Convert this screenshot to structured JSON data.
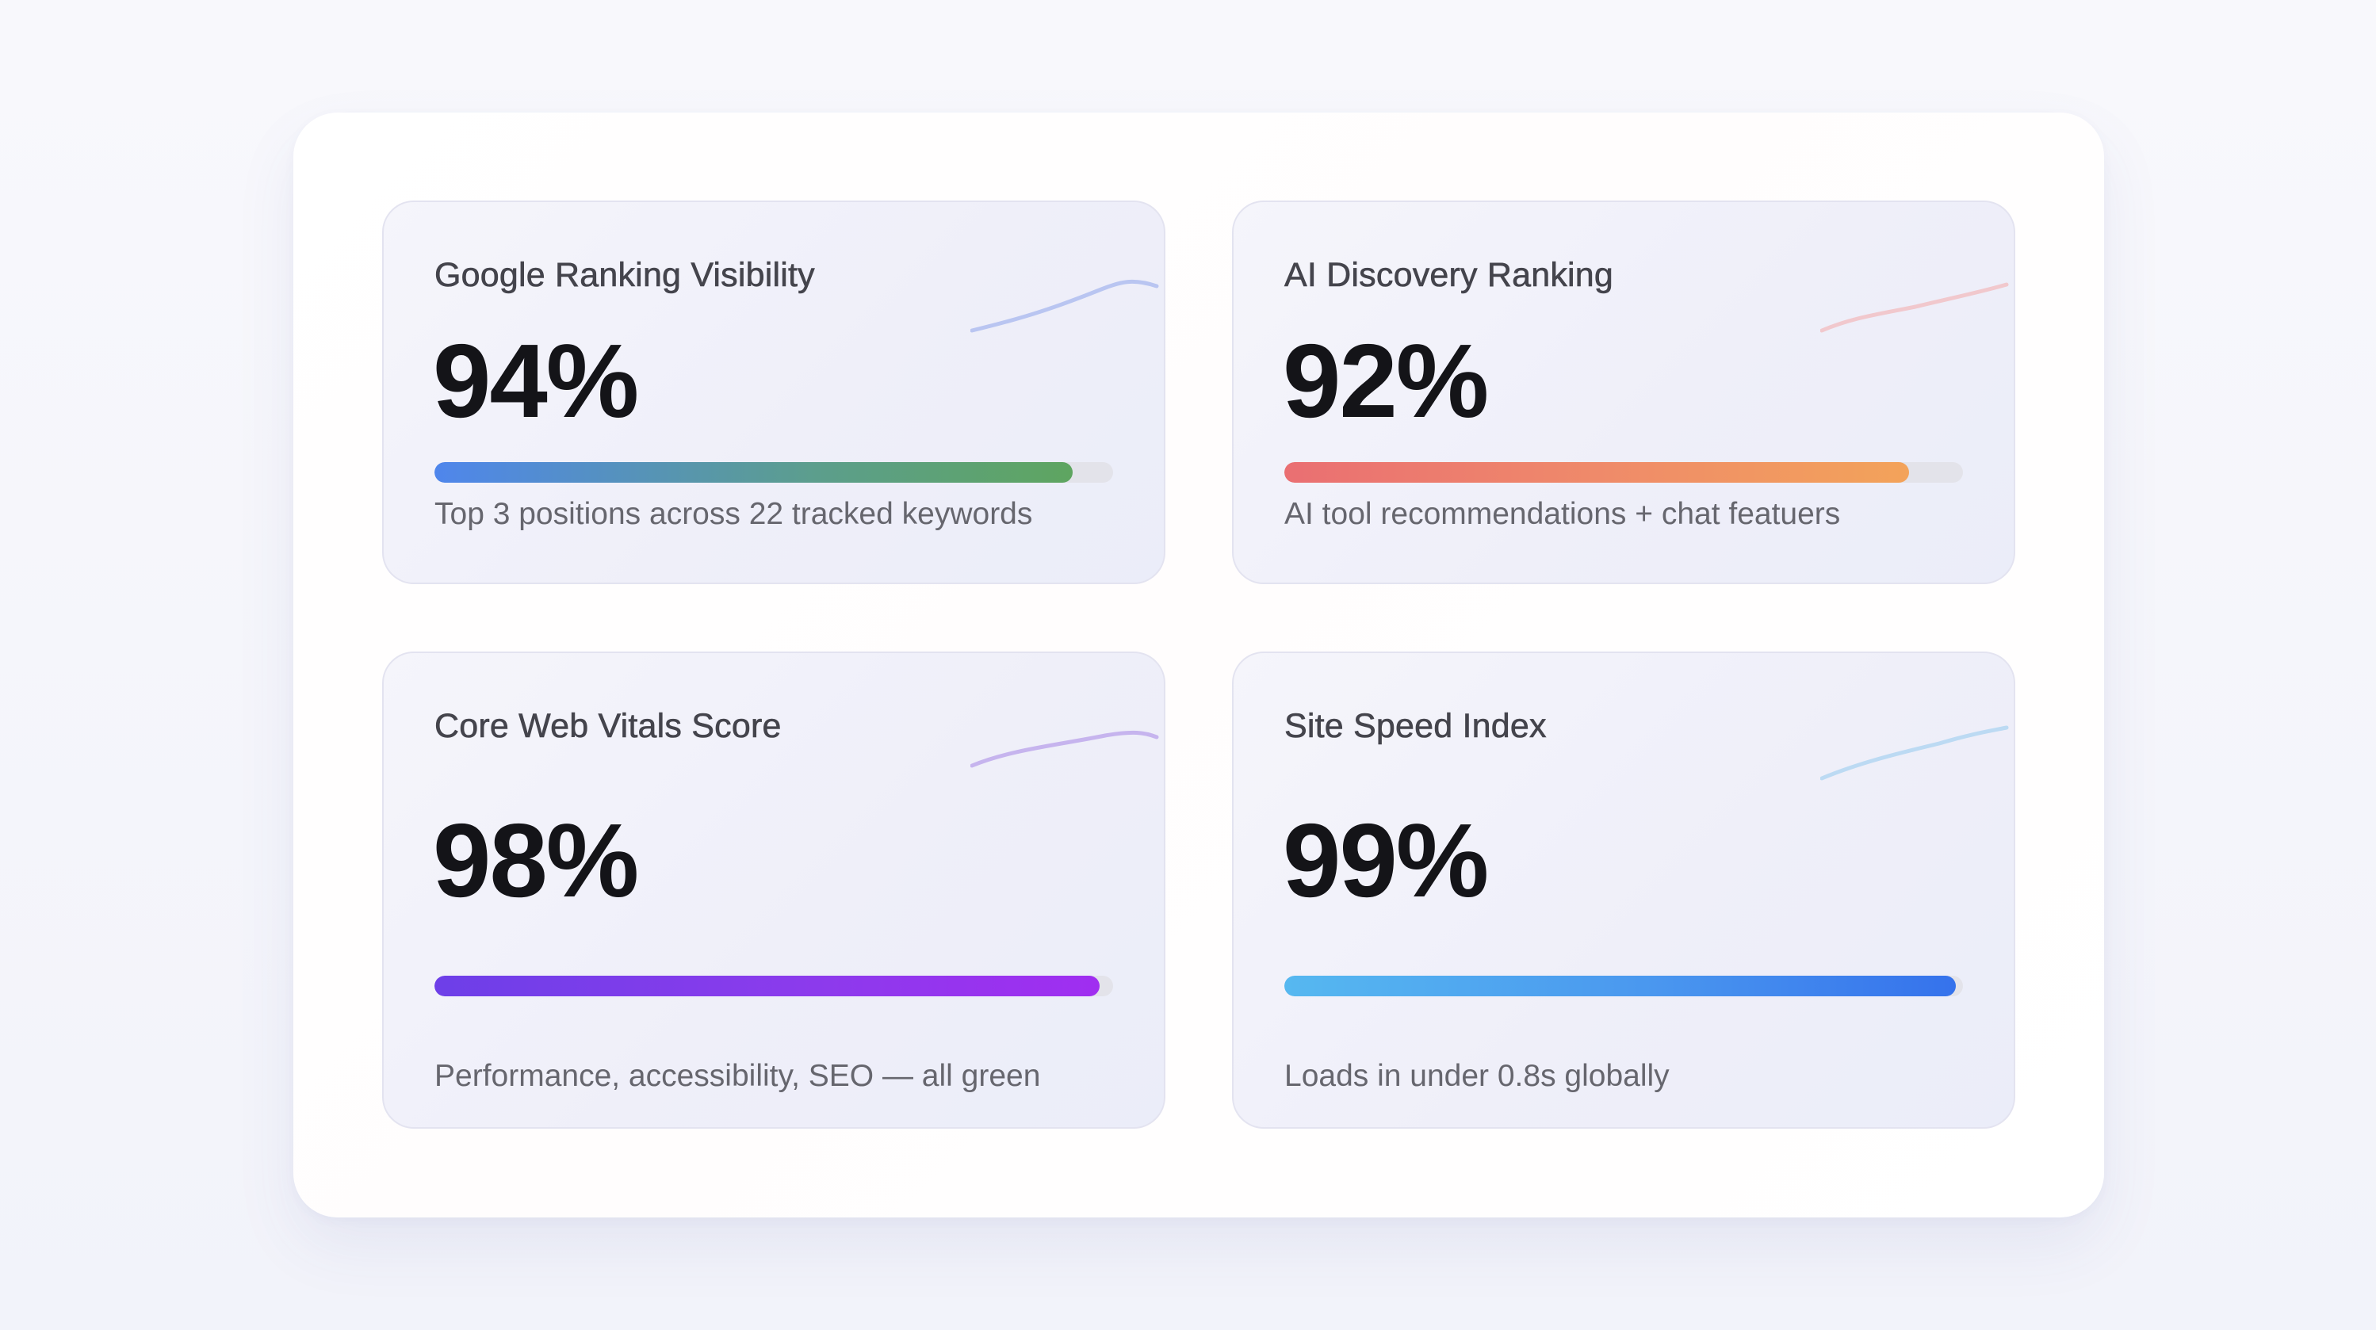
{
  "metrics": [
    {
      "title": "Google Ranking Visibility",
      "value": "94%",
      "progress_percent": 94,
      "description": "Top 3 positions across 22 tracked keywords",
      "sparkline_color": "#b9c5f1"
    },
    {
      "title": "AI Discovery Ranking",
      "value": "92%",
      "progress_percent": 92,
      "description": "AI tool recommendations + chat featuers",
      "sparkline_color": "#f1c8cd"
    },
    {
      "title": "Core Web Vitals Score",
      "value": "98%",
      "progress_percent": 98,
      "description": "Performance, accessibility, SEO — all green",
      "sparkline_color": "#c6b4ee"
    },
    {
      "title": "Site Speed Index",
      "value": "99%",
      "progress_percent": 99,
      "description": "Loads in under 0.8s globally",
      "sparkline_color": "#bcdaf3"
    }
  ]
}
